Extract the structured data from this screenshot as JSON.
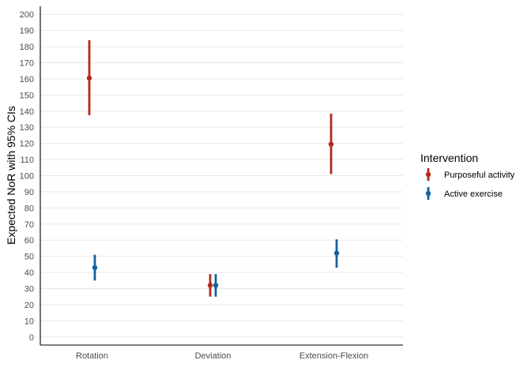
{
  "chart_data": {
    "type": "errorbar",
    "categories": [
      "Rotation",
      "Deviation",
      "Extension-Flexion"
    ],
    "ylabel": "Expected NoR with 95% CIs",
    "xlabel": "",
    "ylim": [
      -5,
      205
    ],
    "yticks": [
      0,
      10,
      20,
      30,
      40,
      50,
      60,
      70,
      80,
      90,
      100,
      110,
      120,
      130,
      140,
      150,
      160,
      170,
      180,
      190,
      200
    ],
    "grid": "horizontal",
    "legend": {
      "title": "Intervention",
      "position": "right"
    },
    "series": [
      {
        "name": "Purposeful activity",
        "color": "#B2291E",
        "estimate": [
          160.5,
          32,
          119.5
        ],
        "lower": [
          137.5,
          25,
          101
        ],
        "upper": [
          184,
          39,
          138.5
        ]
      },
      {
        "name": "Active exercise",
        "color": "#1261A0",
        "estimate": [
          43,
          32,
          52
        ],
        "lower": [
          35,
          25,
          43
        ],
        "upper": [
          51,
          39,
          60.5
        ]
      }
    ]
  }
}
